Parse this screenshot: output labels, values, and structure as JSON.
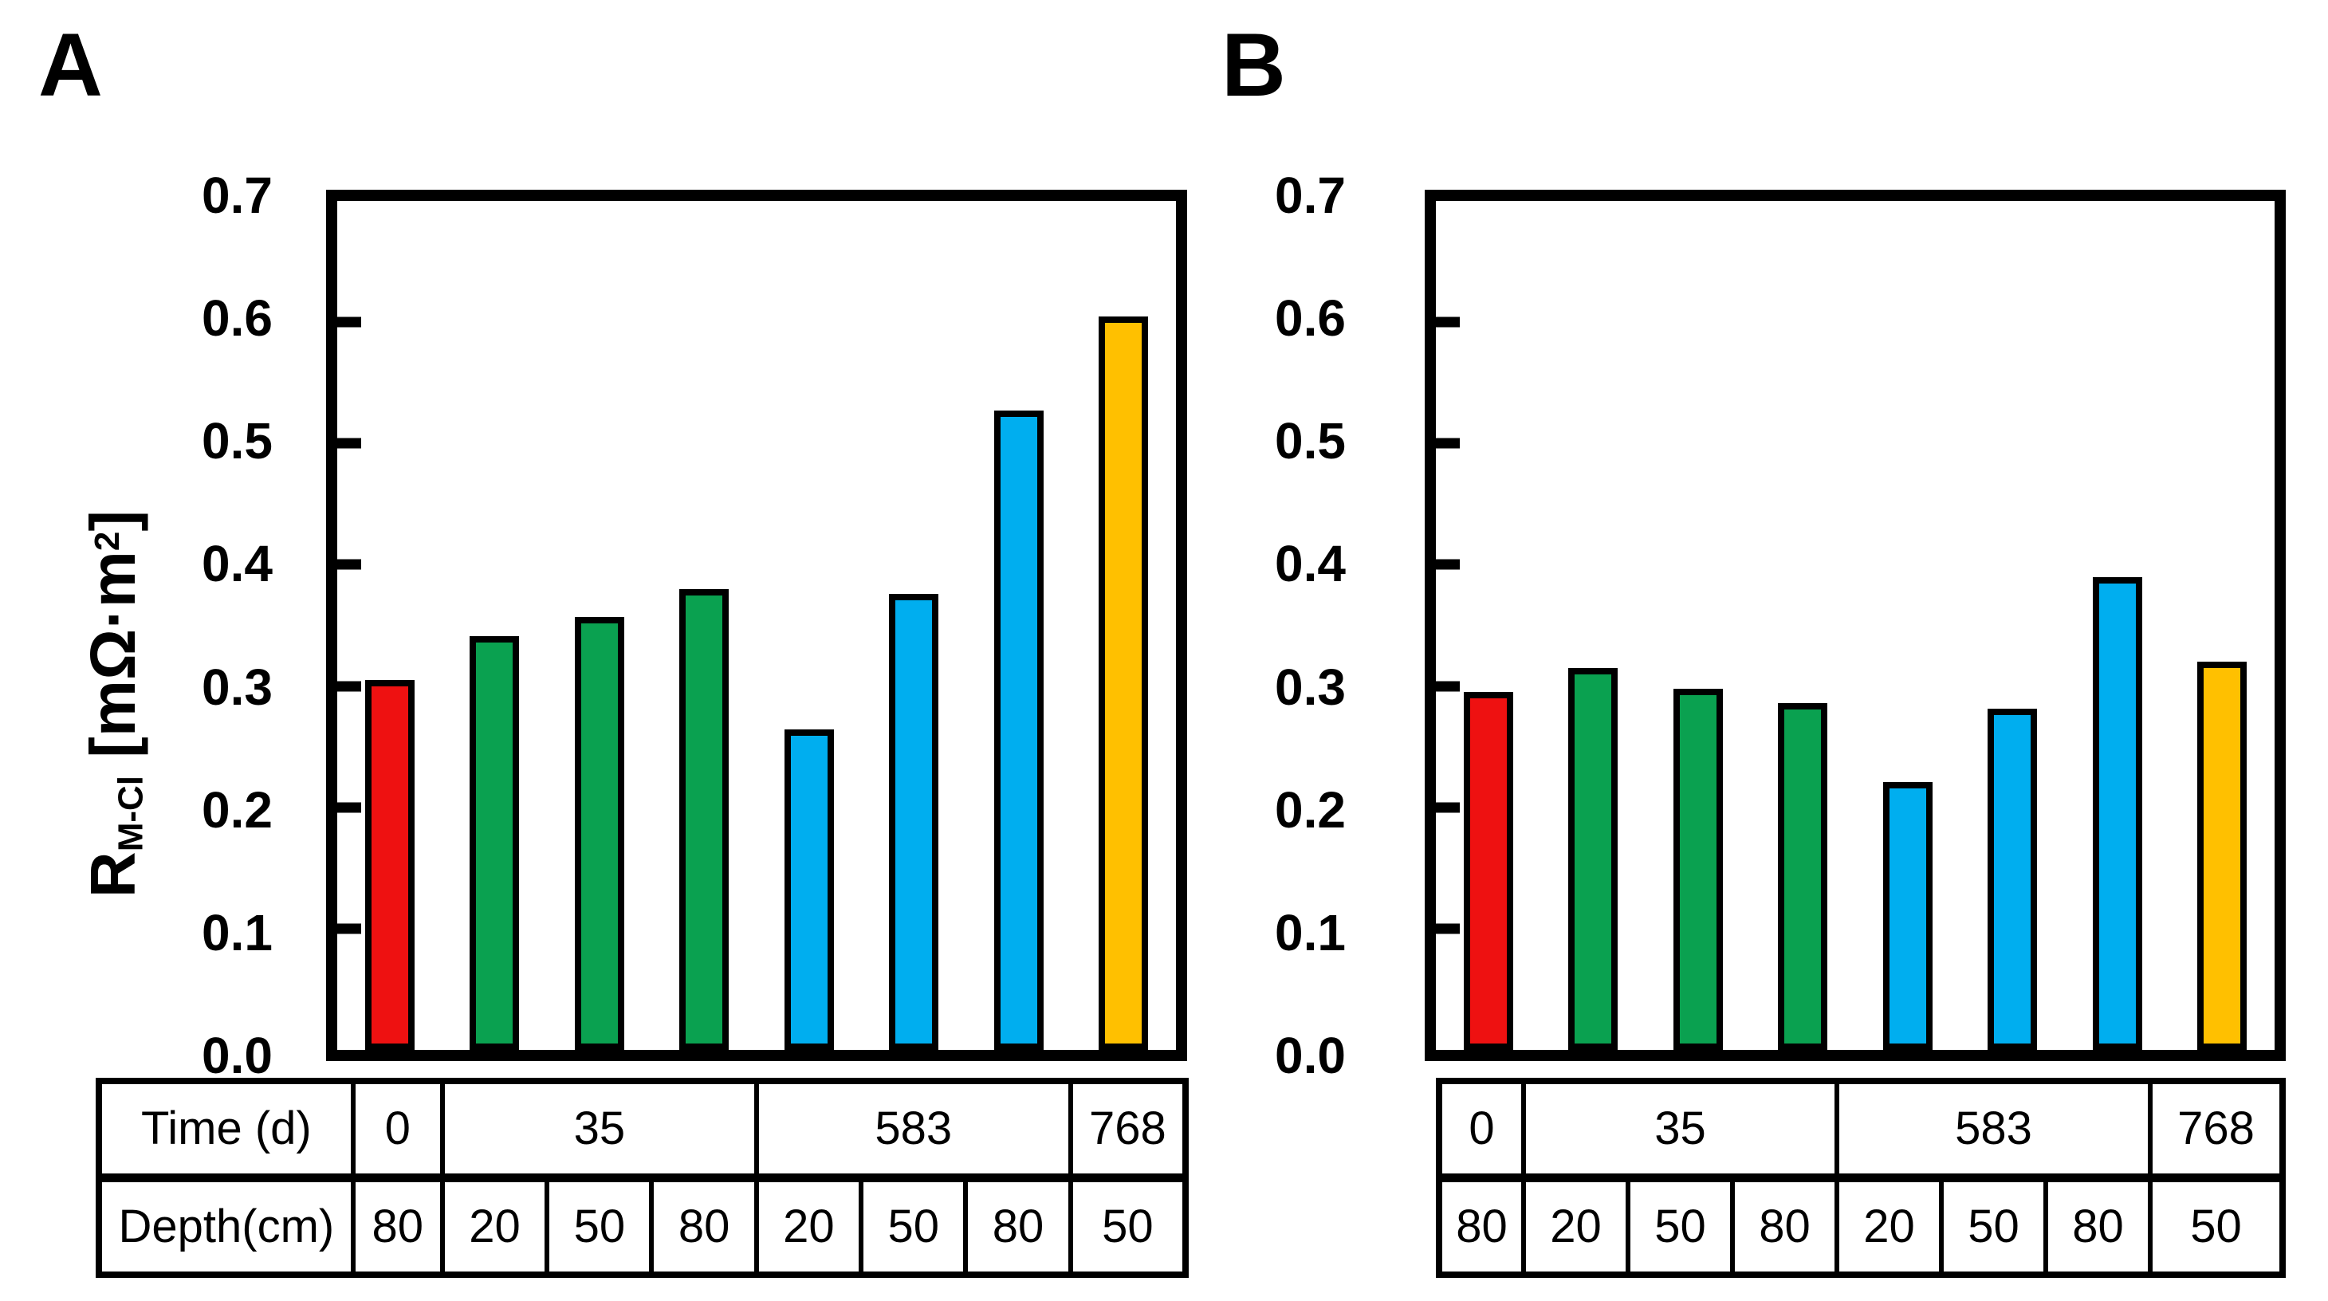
{
  "colors": {
    "red": "#EE1111",
    "green": "#0AA150",
    "blue": "#00AEEF",
    "yellow": "#FFC000",
    "axis": "#000000",
    "background": "#FFFFFF"
  },
  "panels": [
    {
      "label": "A"
    },
    {
      "label": "B"
    }
  ],
  "ylabel": {
    "base": "R",
    "sub": "M-Cl",
    "unit_pre": " [mΩ·m",
    "sup": "2",
    "unit_post": "]",
    "full": "R_M-Cl [mΩ·m²]"
  },
  "yticks": [
    "0.7",
    "0.6",
    "0.5",
    "0.4",
    "0.3",
    "0.2",
    "0.1",
    "0.0"
  ],
  "table": {
    "row_labels": [
      "Time (d)",
      "Depth(cm)"
    ],
    "time_groups": [
      {
        "label": "0",
        "span": 1
      },
      {
        "label": "35",
        "span": 3
      },
      {
        "label": "583",
        "span": 3
      },
      {
        "label": "768",
        "span": 1
      }
    ],
    "depth_values": [
      "80",
      "20",
      "50",
      "80",
      "20",
      "50",
      "80",
      "50"
    ]
  },
  "chart_data": [
    {
      "type": "bar",
      "panel": "A",
      "ylabel": "R_M-Cl [mΩ·m²]",
      "ylim": [
        0,
        0.7
      ],
      "ytick_values": [
        0.0,
        0.1,
        0.2,
        0.3,
        0.4,
        0.5,
        0.6,
        0.7
      ],
      "grid": false,
      "legend": "none",
      "x_time_d": [
        0,
        35,
        35,
        35,
        583,
        583,
        583,
        768
      ],
      "x_depth_cm": [
        80,
        20,
        50,
        80,
        20,
        50,
        80,
        50
      ],
      "values": [
        0.305,
        0.341,
        0.357,
        0.38,
        0.264,
        0.376,
        0.527,
        0.605
      ],
      "bar_colors": [
        "red",
        "green",
        "green",
        "green",
        "blue",
        "blue",
        "blue",
        "yellow"
      ]
    },
    {
      "type": "bar",
      "panel": "B",
      "ylabel": "R_M-Cl [mΩ·m²]",
      "ylim": [
        0,
        0.7
      ],
      "ytick_values": [
        0.0,
        0.1,
        0.2,
        0.3,
        0.4,
        0.5,
        0.6,
        0.7
      ],
      "grid": false,
      "legend": "none",
      "x_time_d": [
        0,
        35,
        35,
        35,
        583,
        583,
        583,
        768
      ],
      "x_depth_cm": [
        80,
        20,
        50,
        80,
        20,
        50,
        80,
        50
      ],
      "values": [
        0.295,
        0.315,
        0.298,
        0.286,
        0.221,
        0.281,
        0.39,
        0.32
      ],
      "bar_colors": [
        "red",
        "green",
        "green",
        "green",
        "blue",
        "blue",
        "blue",
        "yellow"
      ]
    }
  ]
}
